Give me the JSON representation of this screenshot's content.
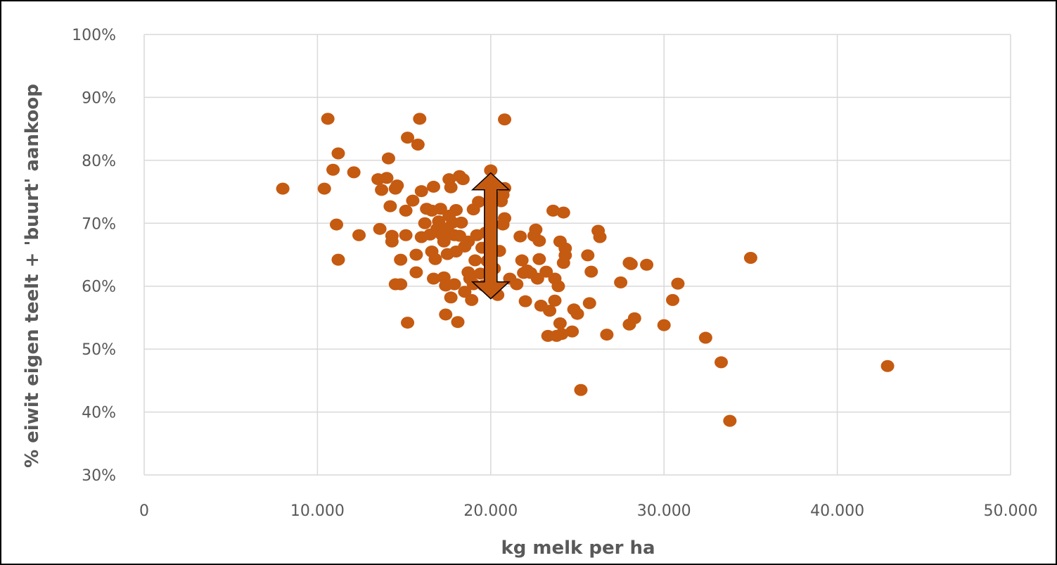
{
  "chart_data": {
    "type": "scatter",
    "title": "",
    "xlabel": "kg melk per ha",
    "ylabel": "% eiwit eigen teelt + 'buurt' aankoop",
    "xlim": [
      0,
      50000
    ],
    "ylim": [
      0.3,
      1.0
    ],
    "x_ticks": [
      0,
      10000,
      20000,
      30000,
      40000,
      50000
    ],
    "x_tick_labels": [
      "0",
      "10.000",
      "20.000",
      "30.000",
      "40.000",
      "50.000"
    ],
    "y_ticks": [
      0.3,
      0.4,
      0.5,
      0.6,
      0.7,
      0.8,
      0.9,
      1.0
    ],
    "y_tick_labels": [
      "30%",
      "40%",
      "50%",
      "60%",
      "70%",
      "80%",
      "90%",
      "100%"
    ],
    "grid": true,
    "legend": "none",
    "marker_color": "#C55A11",
    "annotation": {
      "type": "double-arrow",
      "x": 20000,
      "y_from": 0.58,
      "y_to": 0.78,
      "fill": "#C55A11",
      "stroke": "#000000"
    },
    "points": [
      [
        8000,
        0.755
      ],
      [
        10400,
        0.755
      ],
      [
        10600,
        0.866
      ],
      [
        10900,
        0.785
      ],
      [
        11100,
        0.698
      ],
      [
        11200,
        0.811
      ],
      [
        11200,
        0.642
      ],
      [
        12100,
        0.781
      ],
      [
        12400,
        0.681
      ],
      [
        13500,
        0.77
      ],
      [
        13600,
        0.691
      ],
      [
        13700,
        0.753
      ],
      [
        14000,
        0.772
      ],
      [
        14100,
        0.803
      ],
      [
        14200,
        0.727
      ],
      [
        14300,
        0.671
      ],
      [
        14300,
        0.68
      ],
      [
        14500,
        0.755
      ],
      [
        14600,
        0.76
      ],
      [
        14500,
        0.603
      ],
      [
        14800,
        0.642
      ],
      [
        14800,
        0.603
      ],
      [
        15100,
        0.72
      ],
      [
        15100,
        0.681
      ],
      [
        15200,
        0.836
      ],
      [
        15200,
        0.542
      ],
      [
        15500,
        0.736
      ],
      [
        15700,
        0.622
      ],
      [
        15700,
        0.65
      ],
      [
        15800,
        0.825
      ],
      [
        15900,
        0.866
      ],
      [
        16000,
        0.678
      ],
      [
        16000,
        0.751
      ],
      [
        16200,
        0.7
      ],
      [
        16300,
        0.723
      ],
      [
        16500,
        0.682
      ],
      [
        16600,
        0.72
      ],
      [
        16600,
        0.655
      ],
      [
        16700,
        0.758
      ],
      [
        16700,
        0.612
      ],
      [
        16800,
        0.643
      ],
      [
        16900,
        0.691
      ],
      [
        17000,
        0.703
      ],
      [
        17100,
        0.723
      ],
      [
        17200,
        0.681
      ],
      [
        17300,
        0.614
      ],
      [
        17300,
        0.671
      ],
      [
        17400,
        0.555
      ],
      [
        17400,
        0.601
      ],
      [
        17500,
        0.692
      ],
      [
        17500,
        0.651
      ],
      [
        17600,
        0.77
      ],
      [
        17600,
        0.712
      ],
      [
        17700,
        0.757
      ],
      [
        17700,
        0.582
      ],
      [
        17800,
        0.701
      ],
      [
        17900,
        0.603
      ],
      [
        17900,
        0.681
      ],
      [
        18000,
        0.721
      ],
      [
        18000,
        0.655
      ],
      [
        18100,
        0.543
      ],
      [
        18200,
        0.68
      ],
      [
        18200,
        0.775
      ],
      [
        18300,
        0.701
      ],
      [
        18400,
        0.77
      ],
      [
        18500,
        0.591
      ],
      [
        18500,
        0.663
      ],
      [
        18700,
        0.671
      ],
      [
        18700,
        0.622
      ],
      [
        18800,
        0.612
      ],
      [
        18900,
        0.578
      ],
      [
        19000,
        0.603
      ],
      [
        19000,
        0.722
      ],
      [
        19100,
        0.641
      ],
      [
        19200,
        0.681
      ],
      [
        19300,
        0.734
      ],
      [
        19400,
        0.62
      ],
      [
        19500,
        0.661
      ],
      [
        19600,
        0.601
      ],
      [
        19700,
        0.685
      ],
      [
        19800,
        0.64
      ],
      [
        20000,
        0.784
      ],
      [
        20200,
        0.628
      ],
      [
        20400,
        0.586
      ],
      [
        20500,
        0.656
      ],
      [
        20600,
        0.735
      ],
      [
        20700,
        0.745
      ],
      [
        20700,
        0.698
      ],
      [
        20800,
        0.708
      ],
      [
        20800,
        0.756
      ],
      [
        20800,
        0.865
      ],
      [
        21100,
        0.612
      ],
      [
        21500,
        0.603
      ],
      [
        21700,
        0.679
      ],
      [
        21800,
        0.641
      ],
      [
        21900,
        0.621
      ],
      [
        22000,
        0.576
      ],
      [
        22100,
        0.625
      ],
      [
        22300,
        0.621
      ],
      [
        22500,
        0.68
      ],
      [
        22600,
        0.69
      ],
      [
        22700,
        0.612
      ],
      [
        22800,
        0.643
      ],
      [
        22800,
        0.672
      ],
      [
        22900,
        0.569
      ],
      [
        23200,
        0.623
      ],
      [
        23300,
        0.521
      ],
      [
        23400,
        0.561
      ],
      [
        23600,
        0.72
      ],
      [
        23700,
        0.612
      ],
      [
        23700,
        0.577
      ],
      [
        23800,
        0.521
      ],
      [
        23900,
        0.6
      ],
      [
        24000,
        0.671
      ],
      [
        24000,
        0.541
      ],
      [
        24100,
        0.524
      ],
      [
        24200,
        0.717
      ],
      [
        24200,
        0.637
      ],
      [
        24300,
        0.66
      ],
      [
        24300,
        0.649
      ],
      [
        24700,
        0.528
      ],
      [
        24800,
        0.563
      ],
      [
        25000,
        0.556
      ],
      [
        25200,
        0.435
      ],
      [
        25600,
        0.649
      ],
      [
        25700,
        0.573
      ],
      [
        25800,
        0.623
      ],
      [
        26200,
        0.688
      ],
      [
        26300,
        0.678
      ],
      [
        26700,
        0.523
      ],
      [
        27500,
        0.606
      ],
      [
        28000,
        0.637
      ],
      [
        28000,
        0.539
      ],
      [
        28100,
        0.635
      ],
      [
        28300,
        0.549
      ],
      [
        29000,
        0.634
      ],
      [
        30000,
        0.538
      ],
      [
        30500,
        0.578
      ],
      [
        30800,
        0.604
      ],
      [
        32400,
        0.518
      ],
      [
        33300,
        0.479
      ],
      [
        33800,
        0.386
      ],
      [
        35000,
        0.645
      ],
      [
        42900,
        0.473
      ]
    ]
  }
}
